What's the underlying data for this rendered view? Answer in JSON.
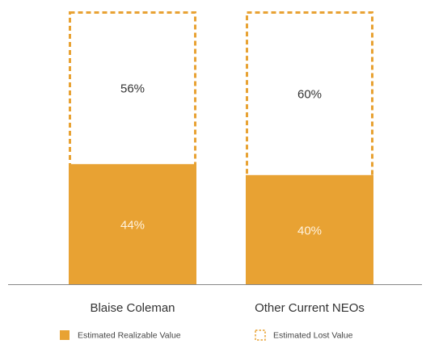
{
  "chart_data": {
    "type": "bar",
    "stacked": true,
    "categories": [
      "Blaise Coleman",
      "Other Current NEOs"
    ],
    "series": [
      {
        "name": "Estimated Realizable Value",
        "values": [
          44,
          40
        ],
        "labels": [
          "44%",
          "40%"
        ],
        "style": "filled",
        "color": "#E8A233"
      },
      {
        "name": "Estimated Lost Value",
        "values": [
          56,
          60
        ],
        "labels": [
          "56%",
          "60%"
        ],
        "style": "dashed-outline",
        "color": "#E8A233"
      }
    ],
    "ylim": [
      0,
      100
    ],
    "grid": false,
    "legend_position": "bottom",
    "inner_label_color": "#FFF3DF",
    "outer_label_color": "#333333",
    "axis_color": "#888888"
  }
}
